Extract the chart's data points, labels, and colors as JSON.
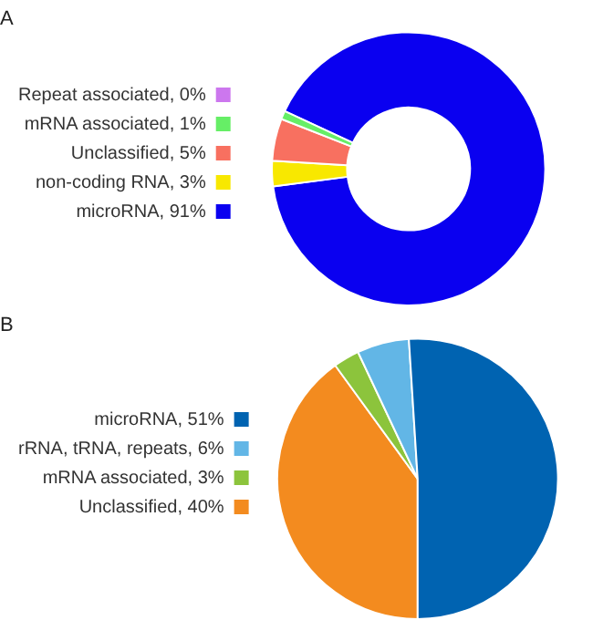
{
  "chart_data": [
    {
      "type": "donut",
      "title": "A",
      "categories": [
        "Repeat associated, 0%",
        "mRNA associated, 1%",
        "Unclassified, 5%",
        "non-coding RNA, 3%",
        "microRNA, 91%"
      ],
      "values": [
        0,
        1,
        5,
        3,
        91
      ],
      "colors": [
        "#cc77ee",
        "#66ee66",
        "#f87060",
        "#f8e800",
        "#0a00f0"
      ],
      "legend": "left"
    },
    {
      "type": "pie",
      "title": "B",
      "categories": [
        "microRNA, 51%",
        "rRNA, tRNA, repeats, 6%",
        "mRNA associated, 3%",
        "Unclassified, 40%"
      ],
      "values": [
        51,
        6,
        3,
        40
      ],
      "colors": [
        "#0063b1",
        "#62b6e6",
        "#8cc43c",
        "#f38b1f"
      ],
      "legend": "left"
    }
  ]
}
